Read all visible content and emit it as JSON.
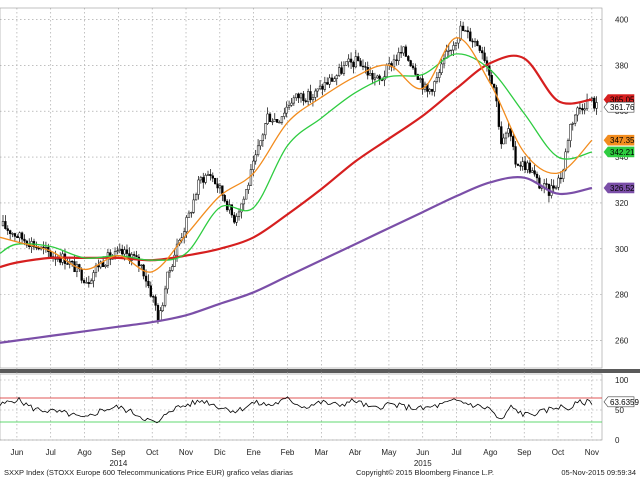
{
  "footer": {
    "left": "SXXP Index (STOXX Europe 600 Telecommunications Price EUR) grafico velas diarias",
    "center": "Copyright© 2015 Bloomberg Finance L.P.",
    "right": "05-Nov-2015 09:59:34"
  },
  "chart_data": [
    {
      "type": "line",
      "subtype": "candlestick-with-moving-averages",
      "title": "",
      "xlabel": "",
      "ylabel": "",
      "x_tick_labels": [
        "Jun",
        "Jul",
        "Ago",
        "Sep",
        "Oct",
        "Nov",
        "Dic",
        "Ene",
        "Feb",
        "Mar",
        "Abr",
        "May",
        "Jun",
        "Jul",
        "Ago",
        "Sep",
        "Oct",
        "Nov"
      ],
      "x_tick_positions": [
        0,
        1,
        2,
        3,
        4,
        5,
        6,
        7,
        8,
        9,
        10,
        11,
        12,
        13,
        14,
        15,
        16,
        17
      ],
      "year_labels": [
        {
          "label": "2014",
          "x": 3
        },
        {
          "label": "2015",
          "x": 12
        }
      ],
      "y_tick_labels": [
        "260",
        "280",
        "300",
        "320",
        "340",
        "360",
        "380",
        "400"
      ],
      "ylim": [
        248,
        405
      ],
      "xlim": [
        -0.5,
        17.3
      ],
      "grid": true,
      "right_value_tags": [
        {
          "label": "365.05",
          "value": 365.05,
          "color": "#d61f1f"
        },
        {
          "label": "361.76",
          "value": 361.76,
          "color": "#ffffff"
        },
        {
          "label": "347.35",
          "value": 347.35,
          "color": "#f28c1e"
        },
        {
          "label": "342.21",
          "value": 342.21,
          "color": "#2ecc40"
        },
        {
          "label": "326.52",
          "value": 326.52,
          "color": "#7b4fa8"
        }
      ],
      "price_x": [
        -0.5,
        0,
        0.3,
        0.6,
        1,
        1.3,
        1.6,
        2,
        2.3,
        2.6,
        3,
        3.3,
        3.6,
        4,
        4.1,
        4.3,
        4.6,
        5,
        5.3,
        5.6,
        6,
        6.3,
        6.6,
        7,
        7.3,
        7.6,
        8,
        8.3,
        8.6,
        9,
        9.3,
        9.6,
        10,
        10.3,
        10.6,
        11,
        11.3,
        11.6,
        12,
        12.3,
        12.6,
        13,
        13.3,
        13.6,
        14,
        14.2,
        14.4,
        14.6,
        15,
        15.3,
        15.6,
        16,
        16.2,
        16.4,
        16.6,
        16.8,
        17
      ],
      "price": [
        310,
        305,
        303,
        300,
        297,
        296,
        292,
        286,
        293,
        296,
        298,
        297,
        292,
        275,
        268,
        285,
        300,
        315,
        330,
        333,
        323,
        313,
        322,
        342,
        358,
        356,
        365,
        367,
        366,
        372,
        375,
        380,
        382,
        376,
        373,
        382,
        386,
        380,
        368,
        374,
        385,
        396,
        392,
        388,
        370,
        345,
        352,
        338,
        336,
        328,
        325,
        333,
        353,
        360,
        363,
        365,
        362
      ],
      "series": [
        {
          "name": "",
          "color": "#d61f1f",
          "x": [
            -0.5,
            0,
            1,
            2,
            3,
            4,
            5,
            6,
            7,
            8,
            9,
            10,
            11,
            12,
            13,
            14,
            15,
            16,
            17
          ],
          "values": [
            292,
            294,
            296,
            296,
            296,
            295,
            297,
            300,
            305,
            315,
            326,
            338,
            348,
            358,
            370,
            381,
            383,
            364.5,
            365.05
          ]
        },
        {
          "name": "",
          "color": "#7b4fa8",
          "x": [
            -0.5,
            0,
            1,
            2,
            3,
            4,
            5,
            6,
            7,
            8,
            9,
            10,
            11,
            12,
            13,
            14,
            15,
            16,
            17
          ],
          "values": [
            259,
            260,
            262,
            264,
            266,
            268,
            271,
            276,
            281,
            288,
            295,
            302,
            309,
            316,
            323,
            329,
            331,
            324,
            326.52
          ]
        },
        {
          "name": "",
          "color": "#2ecc40",
          "x": [
            -0.5,
            0,
            1,
            2,
            3,
            4,
            5,
            6,
            7,
            8,
            9,
            10,
            11,
            12,
            13,
            14,
            15,
            16,
            17
          ],
          "values": [
            298,
            302,
            301,
            296,
            297,
            295,
            298,
            318,
            318,
            345,
            357,
            368,
            375,
            376,
            385,
            378,
            359,
            340,
            342.21
          ]
        },
        {
          "name": "",
          "color": "#f28c1e",
          "x": [
            -0.5,
            0,
            1,
            2,
            3,
            4,
            5,
            6,
            7,
            8,
            9,
            10,
            11,
            12,
            13,
            14,
            15,
            16,
            17
          ],
          "values": [
            305,
            303,
            299,
            291,
            297,
            290,
            306,
            323,
            333,
            355,
            366,
            375,
            380,
            370,
            392,
            372,
            342,
            333,
            347.35
          ]
        }
      ]
    },
    {
      "type": "line",
      "subtype": "oscillator",
      "title": "",
      "y_tick_labels": [
        "0",
        "50",
        "100"
      ],
      "ylim": [
        0,
        110
      ],
      "reference_lines": [
        {
          "value": 70,
          "color": "#d61f1f"
        },
        {
          "value": 30,
          "color": "#2ecc40"
        }
      ],
      "right_value_tags": [
        {
          "label": "63.6359",
          "value": 63.6359,
          "color": "#ffffff"
        }
      ],
      "x": [
        -0.5,
        0,
        0.5,
        1,
        1.5,
        2,
        2.5,
        3,
        3.5,
        4,
        4.2,
        4.5,
        5,
        5.5,
        6,
        6.5,
        7,
        7.5,
        8,
        8.5,
        9,
        9.5,
        10,
        10.5,
        11,
        11.5,
        12,
        12.5,
        13,
        13.5,
        14,
        14.3,
        14.6,
        15,
        15.5,
        16,
        16.3,
        16.6,
        17
      ],
      "values": [
        58,
        68,
        52,
        48,
        44,
        35,
        50,
        55,
        44,
        30,
        28,
        50,
        58,
        66,
        55,
        48,
        62,
        58,
        68,
        55,
        63,
        58,
        66,
        52,
        60,
        55,
        52,
        58,
        66,
        58,
        52,
        30,
        55,
        42,
        46,
        56,
        52,
        62,
        63.64
      ]
    }
  ]
}
